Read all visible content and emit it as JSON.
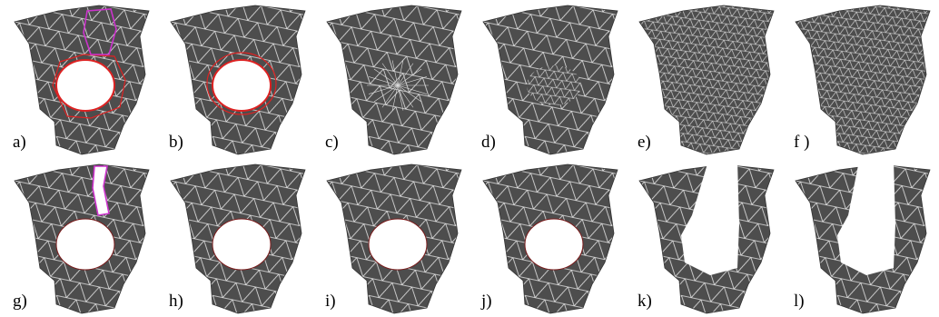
{
  "panels": [
    {
      "label": "a)"
    },
    {
      "label": "b)"
    },
    {
      "label": "c)"
    },
    {
      "label": "d)"
    },
    {
      "label": "e)"
    },
    {
      "label": "f )"
    },
    {
      "label": "g)"
    },
    {
      "label": "h)"
    },
    {
      "label": "i)"
    },
    {
      "label": "j)"
    },
    {
      "label": "k)"
    },
    {
      "label": "l)"
    }
  ]
}
